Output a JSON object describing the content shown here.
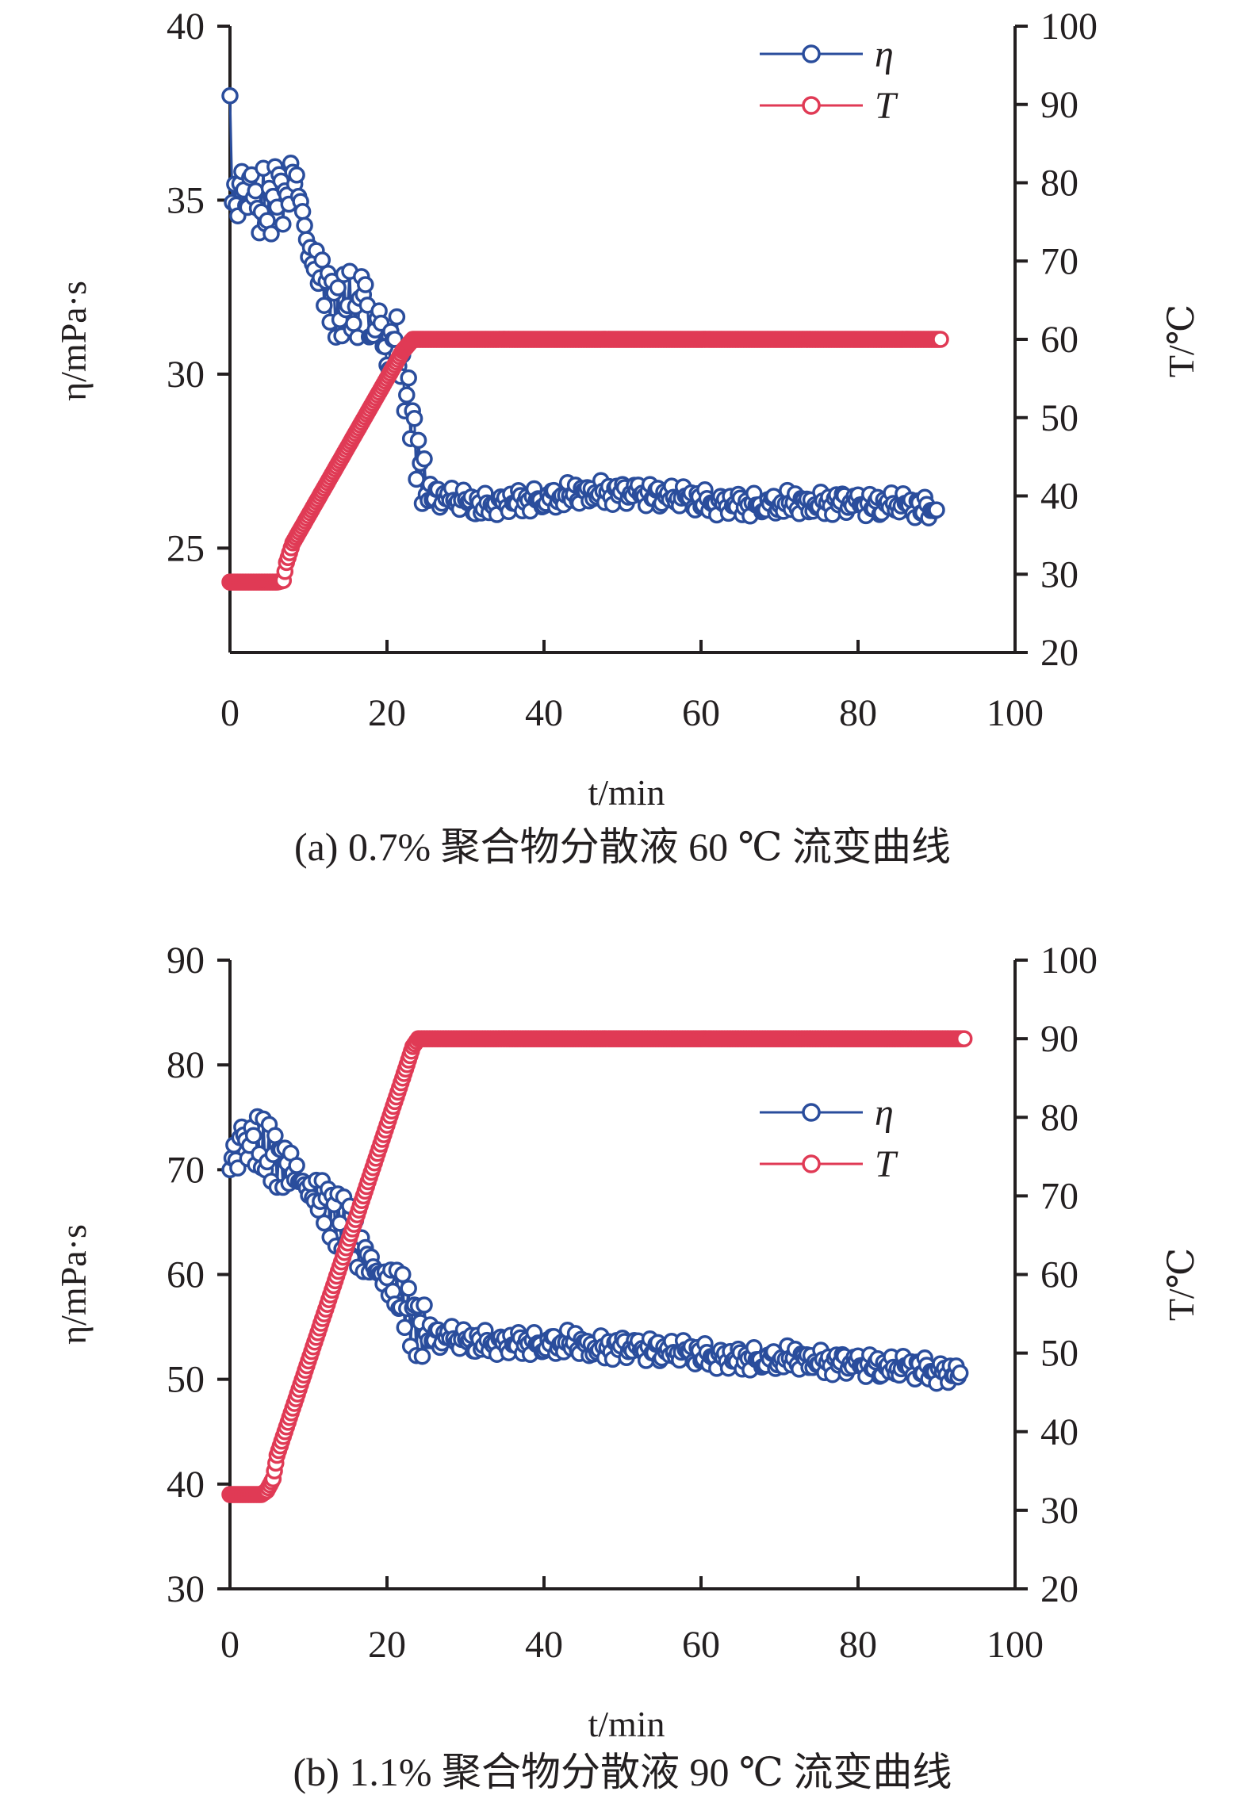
{
  "chart_data": [
    {
      "type": "line",
      "caption": "(a) 0.7% 聚合物分散液 60 ℃ 流变曲线",
      "xlabel": "t/min",
      "ylabel_left": "η/mPa·s",
      "ylabel_right": "T/℃",
      "xlim": [
        0,
        100
      ],
      "ylim_left": [
        22,
        40
      ],
      "ylim_right": [
        20,
        100
      ],
      "xticks": [
        "0",
        "20",
        "40",
        "60",
        "80",
        "100"
      ],
      "yticks_left": [
        "25",
        "30",
        "35",
        "40"
      ],
      "yticks_right": [
        "20",
        "30",
        "40",
        "50",
        "60",
        "70",
        "80",
        "90",
        "100"
      ],
      "legend_position": "top-right",
      "series": [
        {
          "name": "η",
          "axis": "left",
          "color": "#2a4d9c",
          "x": [
            0,
            0.3,
            0.6,
            1,
            1.5,
            2,
            2.5,
            3,
            3.5,
            4,
            5,
            6,
            7,
            8,
            9,
            10,
            11,
            12,
            13,
            14,
            15,
            16,
            17,
            18,
            19,
            20,
            21,
            22,
            23,
            24,
            25,
            26,
            28,
            30,
            32,
            34,
            36,
            38,
            40,
            42,
            44,
            46,
            48,
            50,
            52,
            54,
            56,
            58,
            60,
            62,
            64,
            66,
            68,
            70,
            72,
            74,
            76,
            78,
            80,
            82,
            84,
            86,
            88,
            90
          ],
          "y": [
            38,
            35.2,
            36,
            34.8,
            35.5,
            34.6,
            36.3,
            35,
            34,
            35.2,
            34.5,
            35.6,
            34.8,
            35.9,
            35,
            33.5,
            33.1,
            32.6,
            32.2,
            31.6,
            32.4,
            31.3,
            32.8,
            30.9,
            31.8,
            30.2,
            31.4,
            29.8,
            29,
            27.5,
            26.6,
            26.5,
            26.4,
            26.3,
            26.2,
            26.3,
            26.35,
            26.4,
            26.45,
            26.5,
            26.55,
            26.6,
            26.6,
            26.55,
            26.55,
            26.5,
            26.45,
            26.4,
            26.35,
            26.3,
            26.3,
            26.25,
            26.3,
            26.3,
            26.3,
            26.25,
            26.3,
            26.3,
            26.25,
            26.2,
            26.25,
            26.2,
            26.15,
            26.1
          ]
        },
        {
          "name": "T",
          "axis": "right",
          "color": "#e03a55",
          "x": [
            0,
            2,
            4,
            6,
            6.8,
            7.2,
            8,
            10,
            12,
            14,
            16,
            18,
            20,
            22,
            23.3,
            30,
            40,
            50,
            60,
            70,
            80,
            90.5
          ],
          "y": [
            29,
            29,
            29,
            29,
            29.2,
            31.5,
            34,
            37.5,
            41,
            44.5,
            48,
            51.5,
            55,
            58.5,
            60,
            60,
            60,
            60,
            60,
            60,
            60,
            60
          ]
        }
      ]
    },
    {
      "type": "line",
      "caption": "(b) 1.1% 聚合物分散液 90 ℃ 流变曲线",
      "xlabel": "t/min",
      "ylabel_left": "η/mPa·s",
      "ylabel_right": "T/℃",
      "xlim": [
        0,
        100
      ],
      "ylim_left": [
        30,
        90
      ],
      "ylim_right": [
        20,
        100
      ],
      "xticks": [
        "0",
        "20",
        "40",
        "60",
        "80",
        "100"
      ],
      "yticks_left": [
        "30",
        "40",
        "50",
        "60",
        "70",
        "80",
        "90"
      ],
      "yticks_right": [
        "20",
        "30",
        "40",
        "50",
        "60",
        "70",
        "80",
        "90",
        "100"
      ],
      "legend_position": "right",
      "series": [
        {
          "name": "η",
          "axis": "left",
          "color": "#2a4d9c",
          "x": [
            0,
            0.5,
            1,
            1.5,
            2,
            2.5,
            3,
            4,
            5,
            6,
            7,
            8,
            9,
            10,
            11,
            12,
            13,
            14,
            15,
            16,
            17,
            18,
            19,
            20,
            21,
            22,
            23,
            24,
            25,
            26,
            28,
            30,
            32,
            34,
            36,
            38,
            40,
            42,
            44,
            46,
            48,
            50,
            52,
            54,
            56,
            58,
            60,
            62,
            64,
            66,
            68,
            70,
            72,
            74,
            76,
            78,
            80,
            82,
            84,
            86,
            88,
            90,
            92,
            93
          ],
          "y": [
            70,
            72.5,
            71,
            73,
            72,
            74.5,
            73,
            72,
            71.5,
            71,
            70.5,
            70,
            69,
            68,
            67.5,
            67,
            66,
            65,
            64,
            63,
            62,
            61,
            60,
            59.5,
            58.5,
            57.5,
            56,
            55,
            54.5,
            54,
            54,
            53.5,
            53.5,
            53.5,
            53.5,
            53.5,
            53.5,
            53.5,
            53.5,
            53,
            53,
            53,
            52.8,
            52.8,
            52.5,
            52.5,
            52.3,
            52.2,
            52,
            52,
            52,
            52,
            52,
            51.8,
            51.6,
            51.5,
            51.3,
            51.2,
            51,
            51,
            51,
            50.8,
            50.7,
            50.6
          ]
        },
        {
          "name": "T",
          "axis": "right",
          "color": "#e03a55",
          "x": [
            0,
            2,
            4,
            4.7,
            5.5,
            6,
            8,
            10,
            12,
            14,
            16,
            18,
            20,
            22,
            23.3,
            24,
            26,
            30,
            40,
            50,
            60,
            70,
            80,
            90,
            93.5
          ],
          "y": [
            32,
            32,
            32,
            32.5,
            34,
            37,
            43,
            49,
            55,
            61,
            67,
            73,
            79,
            85,
            89,
            90,
            90,
            90,
            90,
            90,
            90,
            90,
            90,
            90,
            90
          ]
        }
      ]
    }
  ]
}
